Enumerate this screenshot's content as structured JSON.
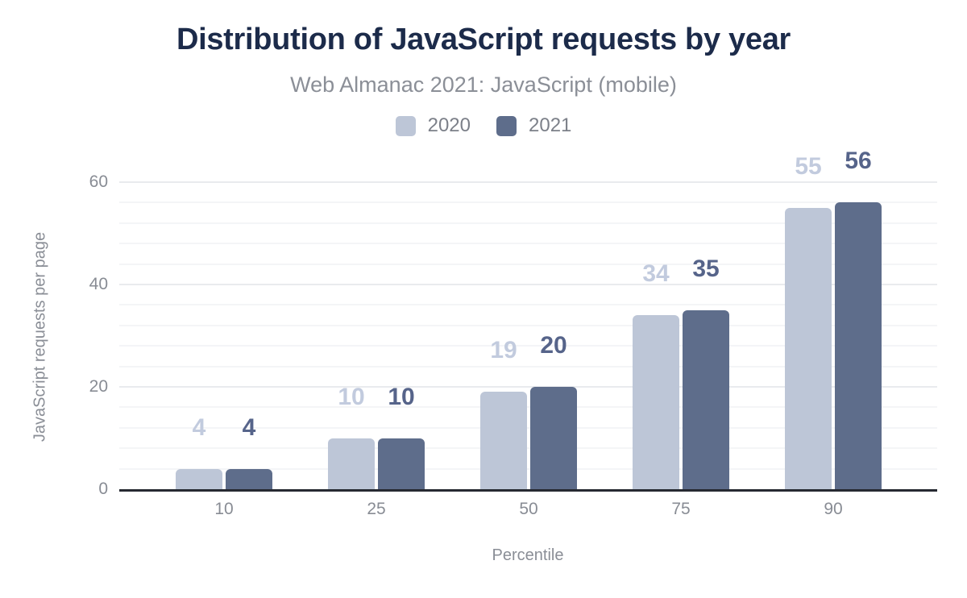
{
  "header": {
    "title": "Distribution of JavaScript requests by year",
    "subtitle": "Web Almanac 2021: JavaScript (mobile)"
  },
  "legend": {
    "items": [
      {
        "label": "2020",
        "color": "#bdc6d7"
      },
      {
        "label": "2021",
        "color": "#5e6d8b"
      }
    ]
  },
  "chart_data": {
    "type": "bar",
    "categories": [
      "10",
      "25",
      "50",
      "75",
      "90"
    ],
    "series": [
      {
        "name": "2020",
        "color": "#bdc6d7",
        "label_color": "#c2cbde",
        "values": [
          4,
          10,
          19,
          34,
          55
        ]
      },
      {
        "name": "2021",
        "color": "#5e6d8b",
        "label_color": "#56648a",
        "values": [
          4,
          10,
          20,
          35,
          56
        ]
      }
    ],
    "title": "Distribution of JavaScript requests by year",
    "subtitle": "Web Almanac 2021: JavaScript (mobile)",
    "xlabel": "Percentile",
    "ylabel": "JavaScript requests per page",
    "ylim": [
      0,
      60
    ],
    "yticks": [
      0,
      20,
      40,
      60
    ],
    "minor_grid_step": 4,
    "grid": true,
    "legend_position": "top",
    "data_labels": true
  },
  "colors": {
    "title": "#1c2b4a",
    "subtitle": "#8b8f97",
    "axis_line": "#262931",
    "tick_label": "#888c94",
    "major_gridline": "#e9ebee",
    "minor_gridline": "#f4f5f7"
  }
}
